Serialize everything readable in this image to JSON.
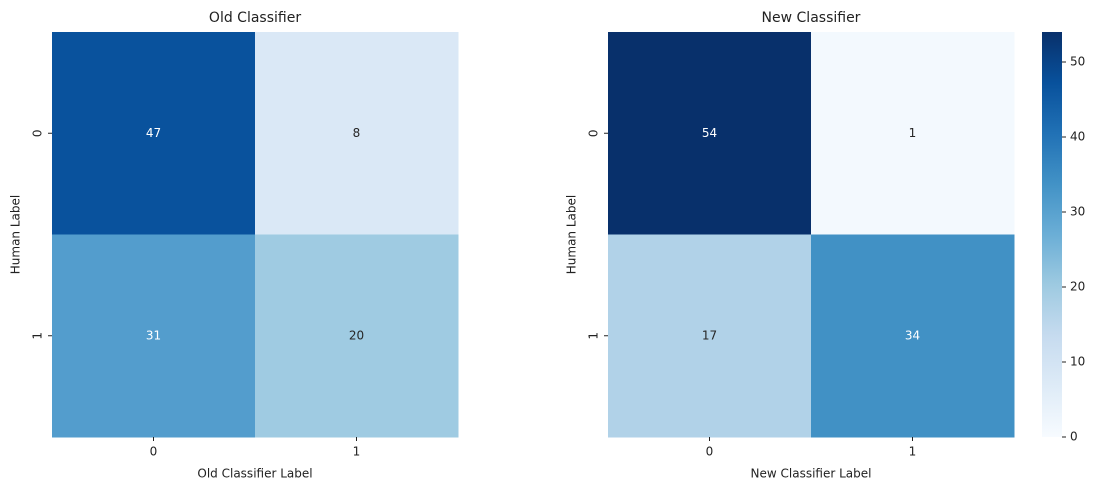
{
  "chart_data": [
    {
      "type": "heatmap",
      "title": "Old Classifier",
      "x_label": "Old Classifier Label",
      "y_label": "Human Label",
      "x_categories": [
        "0",
        "1"
      ],
      "y_categories": [
        "0",
        "1"
      ],
      "values": [
        [
          47,
          8
        ],
        [
          31,
          20
        ]
      ],
      "clim": [
        0,
        54
      ],
      "colormap": "Blues"
    },
    {
      "type": "heatmap",
      "title": "New Classifier",
      "x_label": "New Classifier Label",
      "y_label": "Human Label",
      "x_categories": [
        "0",
        "1"
      ],
      "y_categories": [
        "0",
        "1"
      ],
      "values": [
        [
          54,
          1
        ],
        [
          17,
          34
        ]
      ],
      "clim": [
        0,
        54
      ],
      "colormap": "Blues",
      "colorbar": true,
      "cticks": [
        0,
        10,
        20,
        30,
        40,
        50
      ]
    }
  ]
}
